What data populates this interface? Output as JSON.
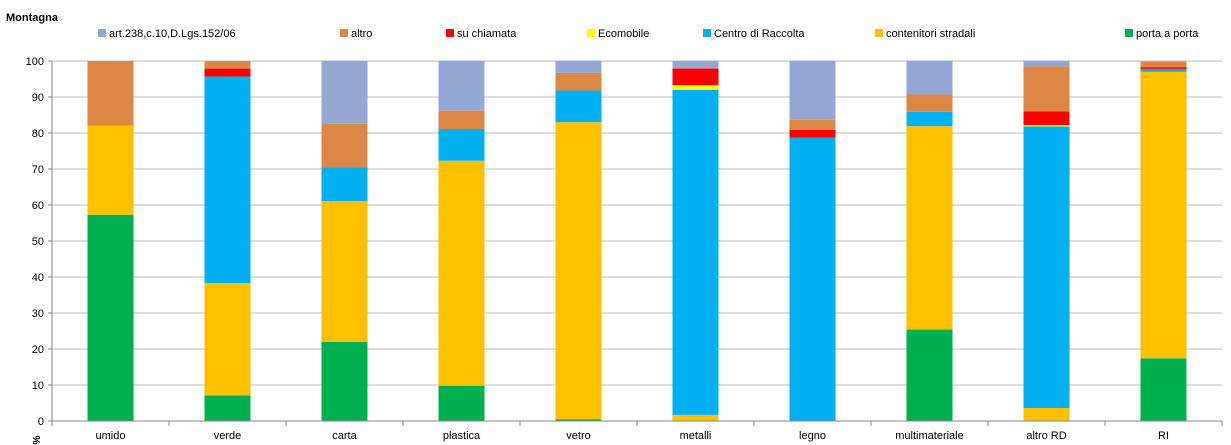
{
  "chart_data": {
    "type": "bar",
    "stacked": true,
    "title": "Montagna",
    "ylabel": "%",
    "ylim": [
      0,
      100
    ],
    "yticks": [
      0,
      10,
      20,
      30,
      40,
      50,
      60,
      70,
      80,
      90,
      100
    ],
    "grid": true,
    "legend_position": "top",
    "categories": [
      "umido",
      "verde",
      "carta",
      "plastica",
      "vetro",
      "metalli",
      "legno",
      "multimateriale",
      "altro RD",
      "RI"
    ],
    "series": [
      {
        "name": "porta a porta",
        "color": "#00b050",
        "values": [
          57.3,
          7.1,
          22.0,
          9.8,
          0.5,
          0.0,
          0.0,
          25.4,
          0.0,
          17.4
        ]
      },
      {
        "name": "contenitori stradali",
        "color": "#ffc000",
        "values": [
          24.7,
          31.2,
          39.1,
          62.5,
          82.5,
          1.7,
          0.0,
          56.5,
          3.6,
          79.6
        ]
      },
      {
        "name": "Centro di Raccolta",
        "color": "#00b0f0",
        "values": [
          0.0,
          57.4,
          9.3,
          8.8,
          8.8,
          90.3,
          78.7,
          4.0,
          78.2,
          0.8
        ]
      },
      {
        "name": "Ecomobile",
        "color": "#ffff00",
        "values": [
          0.0,
          0.0,
          0.0,
          0.0,
          0.0,
          1.3,
          0.0,
          0.0,
          0.4,
          0.0
        ]
      },
      {
        "name": "su chiamata",
        "color": "#ff0000",
        "values": [
          0.0,
          2.2,
          0.0,
          0.0,
          0.0,
          4.6,
          2.2,
          0.0,
          3.8,
          0.5
        ]
      },
      {
        "name": "altro",
        "color": "#dd8747",
        "values": [
          18.0,
          2.1,
          12.2,
          5.1,
          4.9,
          0.0,
          2.8,
          4.8,
          12.5,
          1.5
        ]
      },
      {
        "name": "art.238,c.10,D.Lgs.152/06",
        "color": "#95a7d3",
        "values": [
          0.0,
          0.0,
          17.4,
          13.8,
          3.3,
          2.1,
          16.3,
          9.3,
          1.5,
          0.2
        ]
      }
    ],
    "legend_order": [
      "art.238,c.10,D.Lgs.152/06",
      "altro",
      "su chiamata",
      "Ecomobile",
      "Centro di Raccolta",
      "contenitori stradali",
      "porta a porta"
    ]
  }
}
